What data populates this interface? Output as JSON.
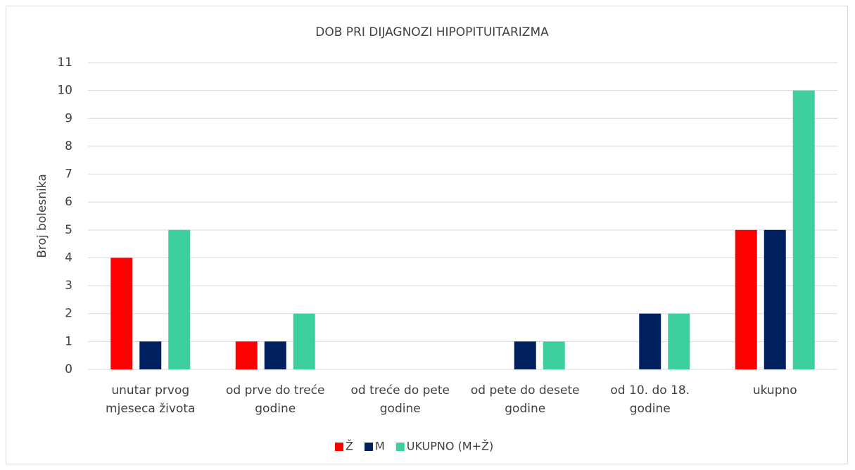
{
  "chart_data": {
    "type": "bar",
    "title": "DOB PRI DIJAGNOZI HIPOPITUITARIZMA",
    "y_label": "Broj bolesnika",
    "categories": [
      "unutar prvog mjeseca života",
      "od prve do treće godine",
      "od treće do pete godine",
      "od pete do desete godine",
      "od 10. do 18. godine",
      "ukupno"
    ],
    "series": [
      {
        "name": "Ž",
        "color": "#ff0000",
        "values": [
          4,
          1,
          0,
          0,
          0,
          5
        ]
      },
      {
        "name": "M",
        "color": "#002060",
        "values": [
          1,
          1,
          0,
          1,
          2,
          5
        ]
      },
      {
        "name": "UKUPNO (M+Ž)",
        "color": "#3ecf9e",
        "values": [
          5,
          2,
          0,
          1,
          2,
          10
        ]
      }
    ],
    "ylim": [
      0,
      11
    ],
    "yticks": [
      0,
      1,
      2,
      3,
      4,
      5,
      6,
      7,
      8,
      9,
      10,
      11
    ],
    "grid": true,
    "legend": "bottom"
  }
}
